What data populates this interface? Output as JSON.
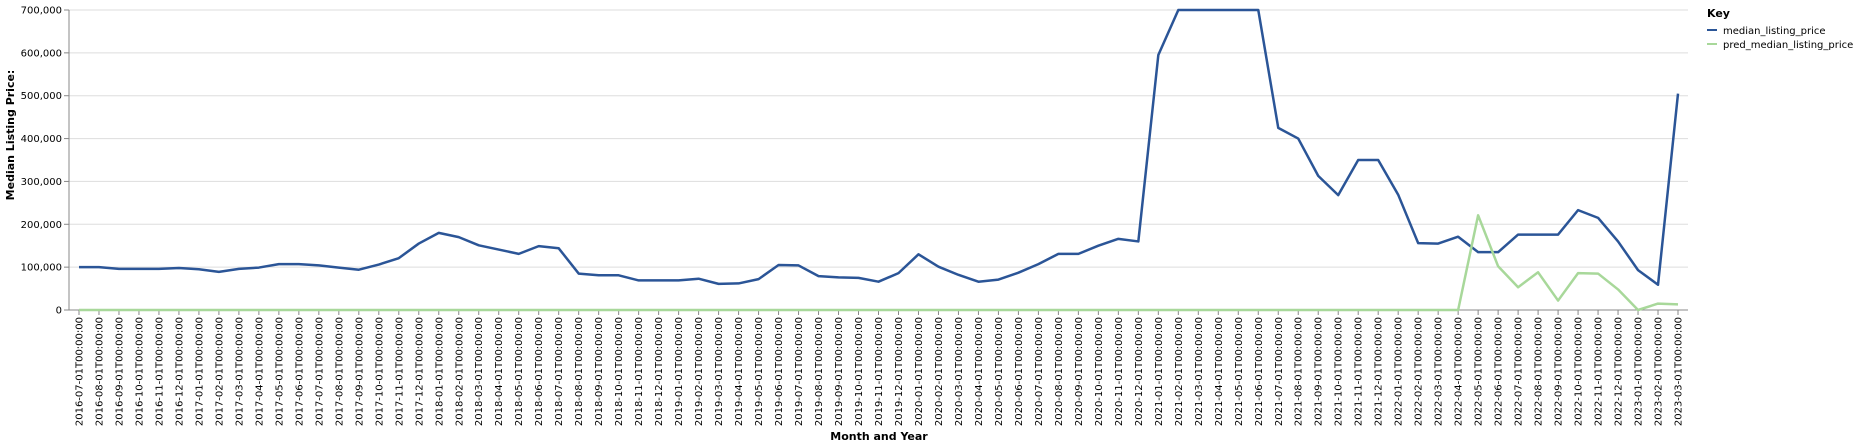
{
  "chart_data": {
    "type": "line",
    "xlabel": "Month and Year",
    "ylabel": "Median Listing Price:",
    "ylim": [
      0,
      700000
    ],
    "yticks": [
      "0",
      "100,000",
      "200,000",
      "300,000",
      "400,000",
      "500,000",
      "600,000",
      "700,000"
    ],
    "grid": true,
    "legend": {
      "title": "Key",
      "placement": "top-right"
    },
    "x": [
      "2016-07-01T00:00:00",
      "2016-08-01T00:00:00",
      "2016-09-01T00:00:00",
      "2016-10-01T00:00:00",
      "2016-11-01T00:00:00",
      "2016-12-01T00:00:00",
      "2017-01-01T00:00:00",
      "2017-02-01T00:00:00",
      "2017-03-01T00:00:00",
      "2017-04-01T00:00:00",
      "2017-05-01T00:00:00",
      "2017-06-01T00:00:00",
      "2017-07-01T00:00:00",
      "2017-08-01T00:00:00",
      "2017-09-01T00:00:00",
      "2017-10-01T00:00:00",
      "2017-11-01T00:00:00",
      "2017-12-01T00:00:00",
      "2018-01-01T00:00:00",
      "2018-02-01T00:00:00",
      "2018-03-01T00:00:00",
      "2018-04-01T00:00:00",
      "2018-05-01T00:00:00",
      "2018-06-01T00:00:00",
      "2018-07-01T00:00:00",
      "2018-08-01T00:00:00",
      "2018-09-01T00:00:00",
      "2018-10-01T00:00:00",
      "2018-11-01T00:00:00",
      "2018-12-01T00:00:00",
      "2019-01-01T00:00:00",
      "2019-02-01T00:00:00",
      "2019-03-01T00:00:00",
      "2019-04-01T00:00:00",
      "2019-05-01T00:00:00",
      "2019-06-01T00:00:00",
      "2019-07-01T00:00:00",
      "2019-08-01T00:00:00",
      "2019-09-01T00:00:00",
      "2019-10-01T00:00:00",
      "2019-11-01T00:00:00",
      "2019-12-01T00:00:00",
      "2020-01-01T00:00:00",
      "2020-02-01T00:00:00",
      "2020-03-01T00:00:00",
      "2020-04-01T00:00:00",
      "2020-05-01T00:00:00",
      "2020-06-01T00:00:00",
      "2020-07-01T00:00:00",
      "2020-08-01T00:00:00",
      "2020-09-01T00:00:00",
      "2020-10-01T00:00:00",
      "2020-11-01T00:00:00",
      "2020-12-01T00:00:00",
      "2021-01-01T00:00:00",
      "2021-02-01T00:00:00",
      "2021-03-01T00:00:00",
      "2021-04-01T00:00:00",
      "2021-05-01T00:00:00",
      "2021-06-01T00:00:00",
      "2021-07-01T00:00:00",
      "2021-08-01T00:00:00",
      "2021-09-01T00:00:00",
      "2021-10-01T00:00:00",
      "2021-11-01T00:00:00",
      "2021-12-01T00:00:00",
      "2022-01-01T00:00:00",
      "2022-02-01T00:00:00",
      "2022-03-01T00:00:00",
      "2022-04-01T00:00:00",
      "2022-05-01T00:00:00",
      "2022-06-01T00:00:00",
      "2022-07-01T00:00:00",
      "2022-08-01T00:00:00",
      "2022-09-01T00:00:00",
      "2022-10-01T00:00:00",
      "2022-11-01T00:00:00",
      "2022-12-01T00:00:00",
      "2023-01-01T00:00:00",
      "2023-02-01T00:00:00",
      "2023-03-01T00:00:00"
    ],
    "series": [
      {
        "name": "median_listing_price",
        "color": "#2b5597",
        "values": [
          100000,
          100000,
          96000,
          96000,
          96000,
          98000,
          95000,
          89000,
          96000,
          99000,
          107000,
          107000,
          104000,
          99000,
          94000,
          106000,
          121000,
          155000,
          180000,
          170000,
          151000,
          141000,
          131000,
          149000,
          144000,
          85000,
          81000,
          81000,
          69000,
          69000,
          69000,
          73000,
          61000,
          62000,
          72000,
          105000,
          104000,
          79000,
          76000,
          75000,
          66000,
          86000,
          130000,
          101000,
          82000,
          66000,
          71000,
          87000,
          107000,
          131000,
          131000,
          150000,
          166000,
          160000,
          595000,
          700000,
          700000,
          700000,
          700000,
          700000,
          425000,
          400000,
          313000,
          268000,
          350000,
          350000,
          269000,
          156000,
          155000,
          171000,
          135000,
          135000,
          176000,
          176000,
          176000,
          233000,
          215000,
          160000,
          93000,
          59000,
          505000
        ]
      },
      {
        "name": "pred_median_listing_price",
        "color": "#a8d89a",
        "values": [
          0,
          0,
          0,
          0,
          0,
          0,
          0,
          0,
          0,
          0,
          0,
          0,
          0,
          0,
          0,
          0,
          0,
          0,
          0,
          0,
          0,
          0,
          0,
          0,
          0,
          0,
          0,
          0,
          0,
          0,
          0,
          0,
          0,
          0,
          0,
          0,
          0,
          0,
          0,
          0,
          0,
          0,
          0,
          0,
          0,
          0,
          0,
          0,
          0,
          0,
          0,
          0,
          0,
          0,
          0,
          0,
          0,
          0,
          0,
          0,
          0,
          0,
          0,
          0,
          0,
          0,
          0,
          0,
          0,
          0,
          221000,
          102000,
          53000,
          88000,
          22000,
          86000,
          85000,
          48000,
          0,
          15000,
          13000
        ]
      }
    ]
  }
}
